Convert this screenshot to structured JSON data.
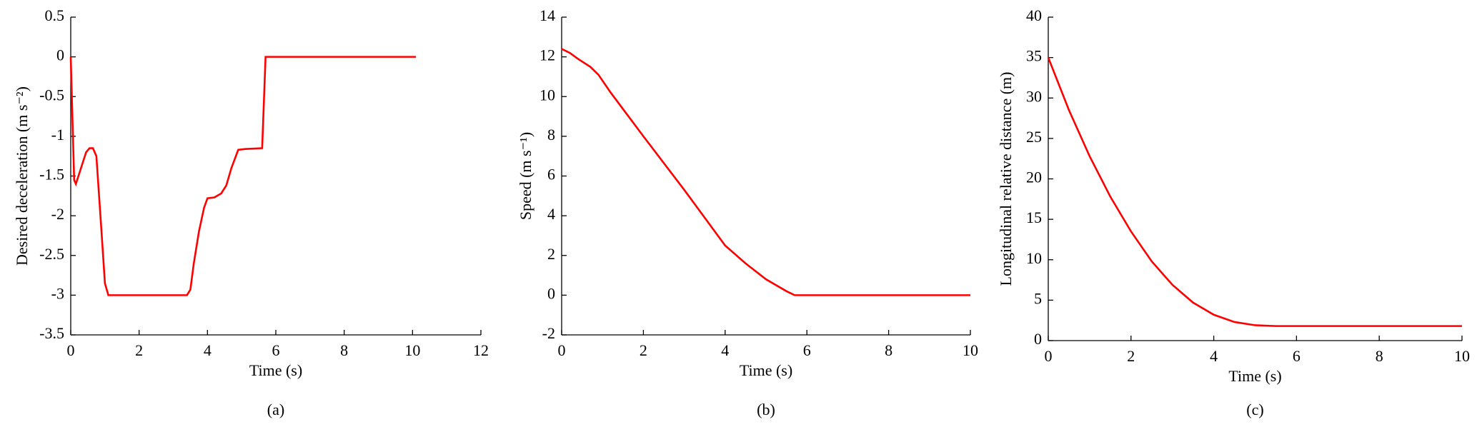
{
  "chart_data": [
    {
      "type": "line",
      "caption": "(a)",
      "xlabel": "Time (s)",
      "ylabel": "Desired deceleration (m s⁻²)",
      "color": "#ff0000",
      "x": [
        0,
        0.1,
        0.15,
        0.3,
        0.45,
        0.55,
        0.65,
        0.75,
        0.9,
        1.0,
        1.1,
        3.4,
        3.5,
        3.6,
        3.75,
        3.9,
        4.0,
        4.2,
        4.4,
        4.55,
        4.7,
        4.9,
        5.1,
        5.6,
        5.7,
        10.1
      ],
      "values": [
        0,
        -1.55,
        -1.6,
        -1.4,
        -1.2,
        -1.15,
        -1.15,
        -1.25,
        -2.2,
        -2.85,
        -3,
        -3,
        -2.93,
        -2.6,
        -2.2,
        -1.9,
        -1.78,
        -1.77,
        -1.72,
        -1.62,
        -1.4,
        -1.17,
        -1.16,
        -1.15,
        0,
        0
      ],
      "xlim": [
        0,
        12
      ],
      "xticks": [
        0,
        2,
        4,
        6,
        8,
        10,
        12
      ],
      "ylim": [
        -3.5,
        0.5
      ],
      "yticks": [
        -3.5,
        -3,
        -2.5,
        -2,
        -1.5,
        -1,
        -0.5,
        0,
        0.5
      ]
    },
    {
      "type": "line",
      "caption": "(b)",
      "xlabel": "Time (s)",
      "ylabel": "Speed (m s⁻¹)",
      "color": "#ff0000",
      "x": [
        0,
        0.2,
        0.4,
        0.7,
        0.9,
        1.2,
        2,
        3,
        3.5,
        4,
        4.5,
        5,
        5.5,
        5.7,
        10
      ],
      "values": [
        12.4,
        12.2,
        11.9,
        11.5,
        11.1,
        10.2,
        8,
        5.3,
        3.9,
        2.5,
        1.6,
        0.8,
        0.2,
        0,
        0
      ],
      "xlim": [
        0,
        10
      ],
      "xticks": [
        0,
        2,
        4,
        6,
        8,
        10
      ],
      "ylim": [
        -2,
        14
      ],
      "yticks": [
        -2,
        0,
        2,
        4,
        6,
        8,
        10,
        12,
        14
      ]
    },
    {
      "type": "line",
      "caption": "(c)",
      "xlabel": "Time (s)",
      "ylabel": "Longitudinal relative distance (m)",
      "color": "#ff0000",
      "x": [
        0,
        0.5,
        1,
        1.5,
        2,
        2.5,
        3,
        3.5,
        4,
        4.5,
        5,
        5.5,
        10
      ],
      "values": [
        35,
        28.5,
        22.8,
        17.8,
        13.5,
        9.8,
        6.9,
        4.7,
        3.2,
        2.3,
        1.9,
        1.8,
        1.8
      ],
      "xlim": [
        0,
        10
      ],
      "xticks": [
        0,
        2,
        4,
        6,
        8,
        10
      ],
      "ylim": [
        0,
        40
      ],
      "yticks": [
        0,
        5,
        10,
        15,
        20,
        25,
        30,
        35,
        40
      ]
    }
  ]
}
